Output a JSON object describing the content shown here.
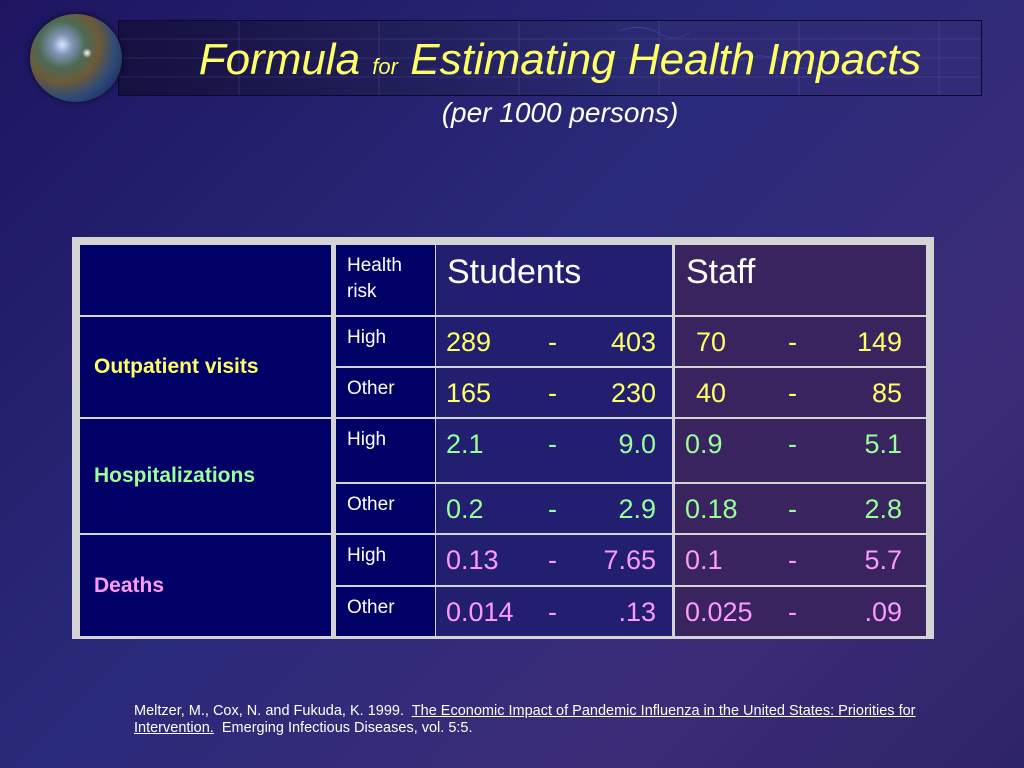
{
  "title": {
    "main_a": "Formula",
    "main_small": "for",
    "main_b": "Estimating Health Impacts",
    "subtitle": "(per 1000 persons)"
  },
  "table": {
    "header": {
      "risk": "Health risk",
      "students": "Students",
      "staff": "Staff"
    },
    "colors": {
      "outpatient": "#ffff66",
      "hospitalizations": "#99ff99",
      "deaths": "#ff99ff"
    },
    "groups": [
      {
        "label": "Outpatient visits",
        "rows": [
          {
            "risk": "High",
            "students": [
              "289",
              "-",
              "403"
            ],
            "staff": [
              "70",
              "-",
              "149"
            ]
          },
          {
            "risk": "Other",
            "students": [
              "165",
              "-",
              "230"
            ],
            "staff": [
              "40",
              "-",
              "85"
            ]
          }
        ]
      },
      {
        "label": "Hospitalizations",
        "rows": [
          {
            "risk": "High",
            "students": [
              "2.1",
              "-",
              "9.0"
            ],
            "staff": [
              "0.9",
              "-",
              "5.1"
            ]
          },
          {
            "risk": "Other",
            "students": [
              "0.2",
              "-",
              "2.9"
            ],
            "staff": [
              "0.18",
              "-",
              "2.8"
            ]
          }
        ]
      },
      {
        "label": "Deaths",
        "rows": [
          {
            "risk": "High",
            "students": [
              "0.13",
              "-",
              "7.65"
            ],
            "staff": [
              "0.1",
              "-",
              "5.7"
            ]
          },
          {
            "risk": "Other",
            "students": [
              "0.014",
              "-",
              ".13"
            ],
            "staff": [
              "0.025",
              "-",
              ".09"
            ]
          }
        ]
      }
    ]
  },
  "footer": {
    "authors": "Meltzer, M., Cox, N. and Fukuda, K.  1999.",
    "link_title": "The Economic Impact of Pandemic Influenza in the United States: Priorities for Intervention.",
    "journal": "Emerging Infectious Diseases, vol. 5:5."
  }
}
